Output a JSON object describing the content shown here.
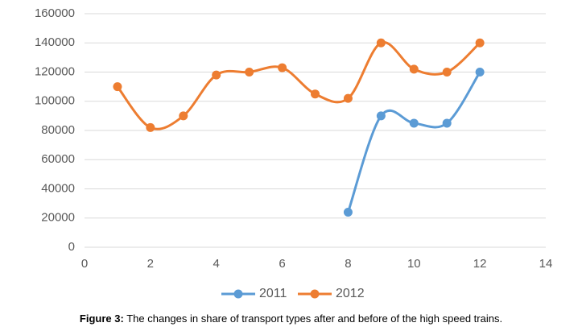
{
  "chart_data": {
    "type": "scatter-smooth",
    "xlim": [
      0,
      14
    ],
    "xticks": [
      0,
      2,
      4,
      6,
      8,
      10,
      12,
      14
    ],
    "ylim": [
      0,
      160000
    ],
    "yticks": [
      0,
      20000,
      40000,
      60000,
      80000,
      100000,
      120000,
      140000,
      160000
    ],
    "grid": true,
    "legend": "bottom",
    "series": [
      {
        "name": "2011",
        "color": "#5b9bd5",
        "x": [
          8,
          9,
          10,
          11,
          12
        ],
        "values": [
          24000,
          90000,
          85000,
          85000,
          120000
        ]
      },
      {
        "name": "2012",
        "color": "#ed7d31",
        "x": [
          1,
          2,
          3,
          4,
          5,
          6,
          7,
          8,
          9,
          10,
          11,
          12
        ],
        "values": [
          110000,
          82000,
          90000,
          118000,
          120000,
          123000,
          105000,
          102000,
          140000,
          122000,
          120000,
          140000
        ]
      }
    ],
    "caption_label": "Figure 3:",
    "caption": "The changes in share of transport types after and before of the high speed trains."
  }
}
